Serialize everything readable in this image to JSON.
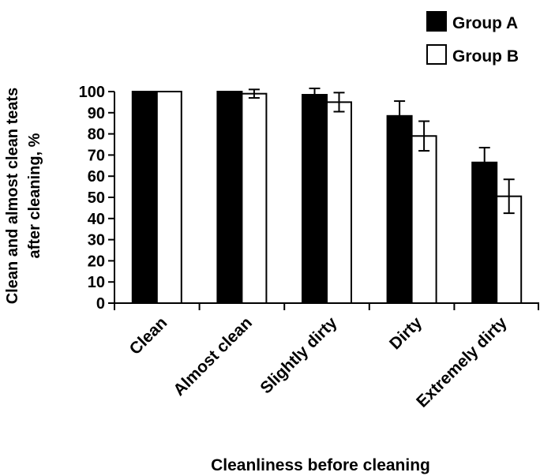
{
  "chart_data": {
    "type": "bar",
    "title": "",
    "xlabel": "Cleanliness before cleaning",
    "ylabel_lines": [
      "Clean and almost clean teats",
      "after cleaning, %"
    ],
    "categories": [
      "Clean",
      "Almost clean",
      "Slightly dirty",
      "Dirty",
      "Extremely dirty"
    ],
    "ylim": [
      0,
      100
    ],
    "yticks": [
      "0",
      "10",
      "20",
      "30",
      "40",
      "50",
      "60",
      "70",
      "80",
      "90",
      "100"
    ],
    "grid": false,
    "legend_position": "top-right",
    "series": [
      {
        "name": "Group A",
        "color": "#000000",
        "values": [
          100,
          100,
          98.5,
          88.5,
          66.5
        ],
        "errors": [
          0,
          0,
          3,
          7,
          7
        ]
      },
      {
        "name": "Group B",
        "color": "#ffffff",
        "values": [
          100,
          99,
          95,
          79,
          50.5
        ],
        "errors": [
          0,
          2,
          4.5,
          7,
          8
        ]
      }
    ]
  }
}
